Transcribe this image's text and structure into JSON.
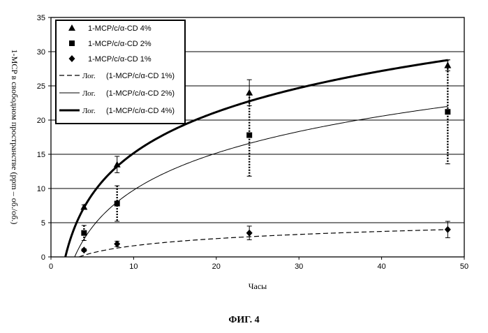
{
  "figure": {
    "caption": "ФИГ. 4"
  },
  "chart_data": {
    "type": "scatter",
    "xlabel": "Часы",
    "ylabel": "1-MCP в свободном пространстве (ppm – об./об.)",
    "xlim": [
      0,
      50
    ],
    "ylim": [
      0,
      35
    ],
    "x_ticks": [
      "0",
      "10",
      "20",
      "30",
      "40",
      "50"
    ],
    "y_ticks": [
      "0",
      "5",
      "10",
      "15",
      "20",
      "25",
      "30",
      "35"
    ],
    "grid": "horizontal",
    "legend_position": "top-left",
    "series": [
      {
        "name": "1-MCP/c/α-CD 4%",
        "marker": "triangle",
        "points": [
          {
            "x": 4,
            "y": 7.3,
            "err": 0.3
          },
          {
            "x": 8,
            "y": 13.5,
            "err": 1.2
          },
          {
            "x": 24,
            "y": 24.0,
            "err": 1.9
          },
          {
            "x": 48,
            "y": 28.0,
            "err": 0.8
          }
        ]
      },
      {
        "name": "1-MCP/c/α-CD 2%",
        "marker": "square",
        "points": [
          {
            "x": 4,
            "y": 3.5,
            "err": 1.1
          },
          {
            "x": 8,
            "y": 7.8,
            "err": 2.6
          },
          {
            "x": 24,
            "y": 17.8,
            "err": 6.0
          },
          {
            "x": 48,
            "y": 21.2,
            "err": 7.6
          }
        ]
      },
      {
        "name": "1-MCP/c/α-CD 1%",
        "marker": "diamond",
        "points": [
          {
            "x": 4,
            "y": 1.0,
            "err": 0.2
          },
          {
            "x": 8,
            "y": 1.9,
            "err": 0.4
          },
          {
            "x": 24,
            "y": 3.5,
            "err": 1.0
          },
          {
            "x": 48,
            "y": 4.0,
            "err": 1.2
          }
        ]
      }
    ],
    "trendlines": [
      {
        "label_prefix": "Лог.",
        "label_series": "(1-MCP/c/α-CD 1%)",
        "style": "dashed",
        "a": 1.51,
        "b": -1.85
      },
      {
        "label_prefix": "Лог.",
        "label_series": "(1-MCP/c/α-CD 2%)",
        "style": "thin",
        "a": 7.8,
        "b": -8.2
      },
      {
        "label_prefix": "Лог.",
        "label_series": "(1-MCP/c/α-CD 4%)",
        "style": "thick",
        "a": 8.67,
        "b": -4.8
      }
    ]
  }
}
